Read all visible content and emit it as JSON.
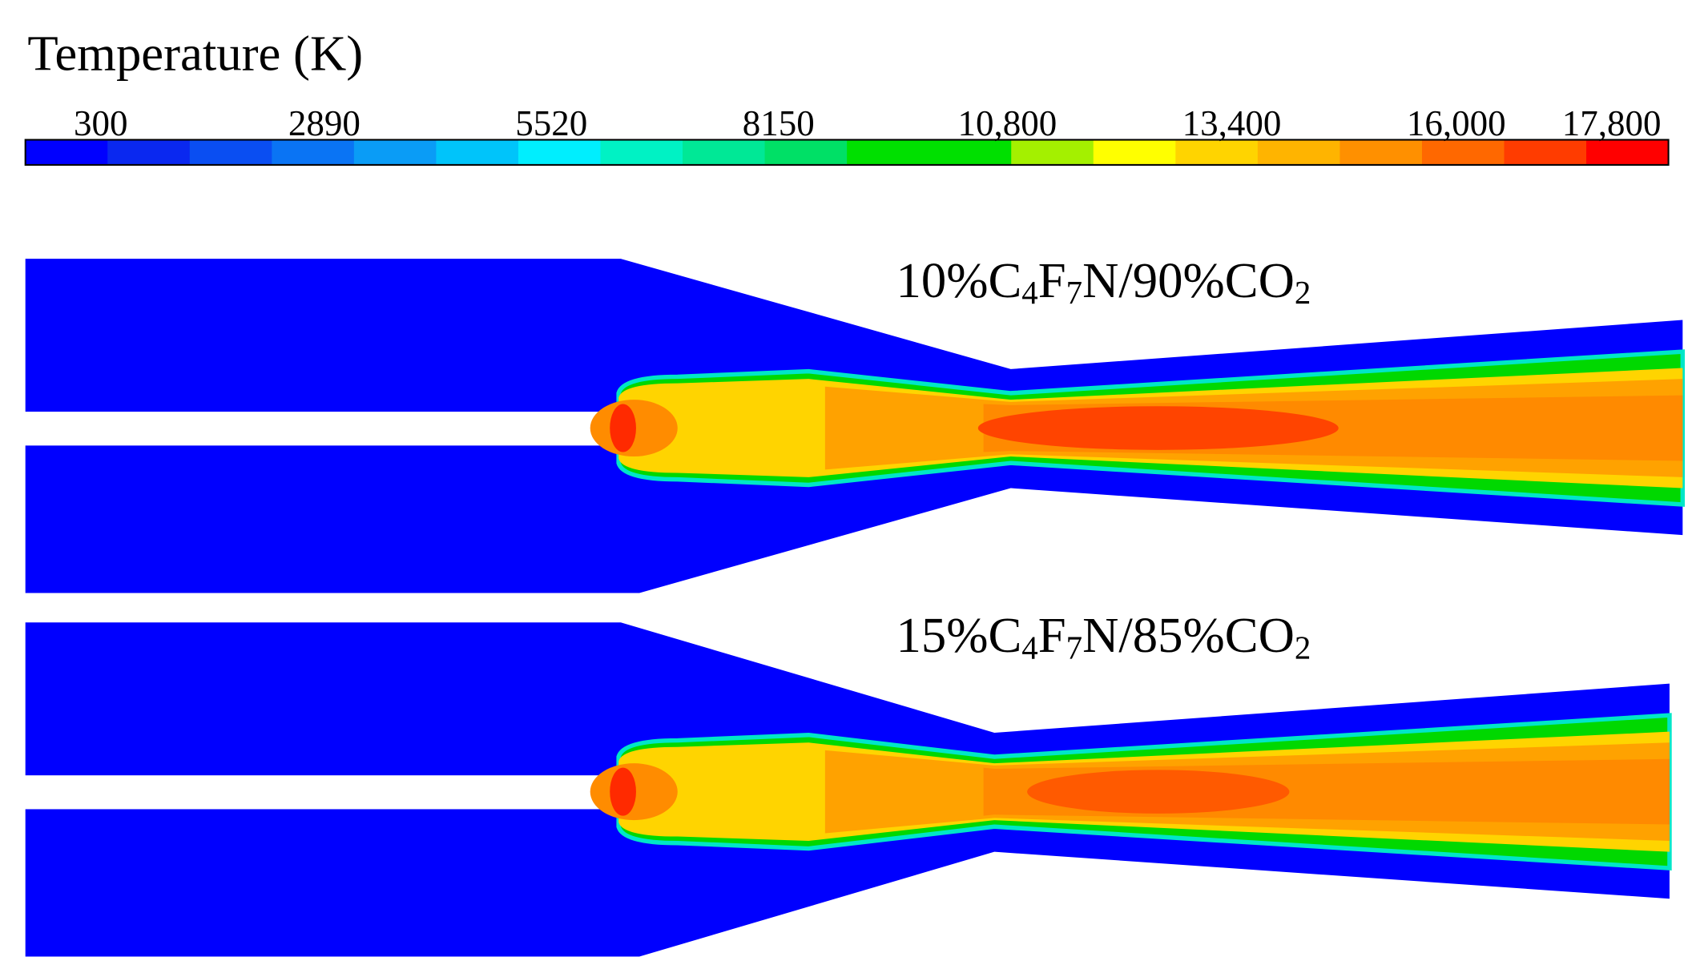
{
  "title": "Temperature (K)",
  "colorbar": {
    "ticks": [
      300,
      2890,
      5520,
      8150,
      {
        "value": 10800,
        "label": "10,800"
      },
      {
        "value": 13400,
        "label": "13,400"
      },
      {
        "value": 16000,
        "label": "16,000"
      },
      {
        "value": 17800,
        "label": "17,800"
      }
    ]
  },
  "panels": [
    {
      "label": "10%C4F7N/90%CO2"
    },
    {
      "label": "15%C4F7N/85%CO2"
    }
  ]
}
